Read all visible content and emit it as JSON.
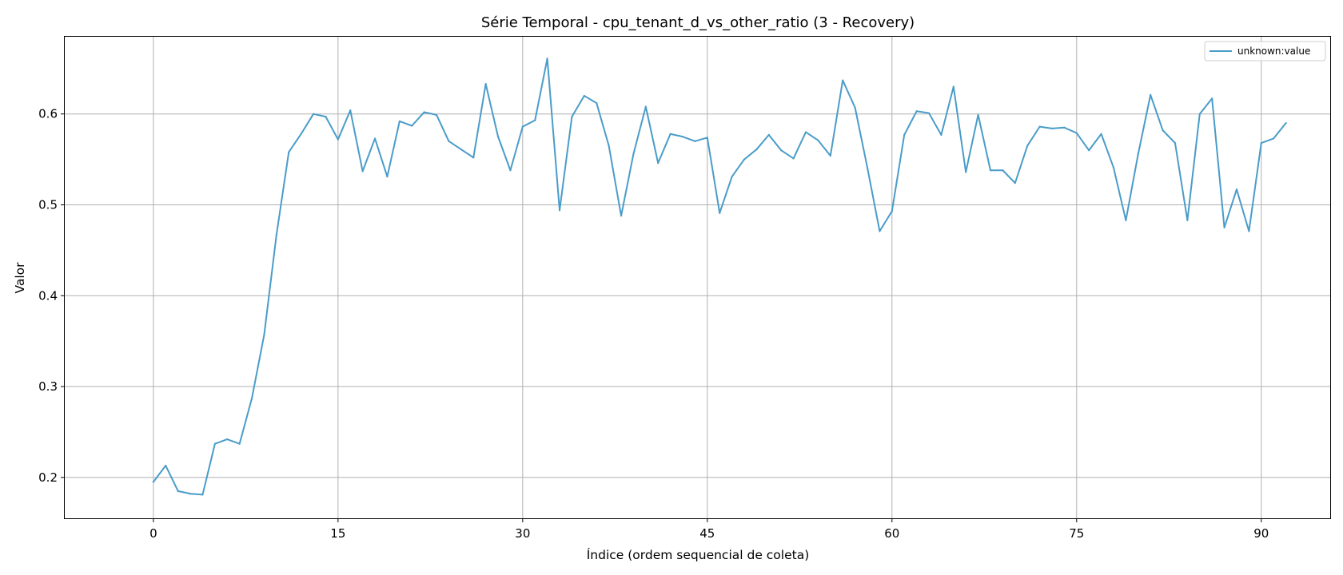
{
  "chart_data": {
    "type": "line",
    "title": "Série Temporal - cpu_tenant_d_vs_other_ratio (3 - Recovery)",
    "xlabel": "Índice (ordem sequencial de coleta)",
    "ylabel": "Valor",
    "xlim": [
      -7.2,
      95.6
    ],
    "ylim": [
      0.155,
      0.685
    ],
    "xticks": [
      0,
      15,
      30,
      45,
      60,
      75,
      90
    ],
    "yticks": [
      0.2,
      0.3,
      0.4,
      0.5,
      0.6
    ],
    "grid": true,
    "legend_position": "top-right",
    "colors": {
      "series": "#4a9cc9",
      "grid": "#b0b0b0"
    },
    "series": [
      {
        "name": "unknown:value",
        "x": [
          0,
          1,
          2,
          3,
          4,
          5,
          6,
          7,
          8,
          9,
          10,
          11,
          12,
          13,
          14,
          15,
          16,
          17,
          18,
          19,
          20,
          21,
          22,
          23,
          24,
          25,
          26,
          27,
          28,
          29,
          30,
          31,
          32,
          33,
          34,
          35,
          36,
          37,
          38,
          39,
          40,
          41,
          42,
          43,
          44,
          45,
          46,
          47,
          48,
          49,
          50,
          51,
          52,
          53,
          54,
          55,
          56,
          57,
          58,
          59,
          60,
          61,
          62,
          63,
          64,
          65,
          66,
          67,
          68,
          69,
          70,
          71,
          72,
          73,
          74,
          75,
          76,
          77,
          78,
          79,
          80,
          81,
          82,
          83,
          84,
          85,
          86,
          87,
          88,
          89,
          90,
          91,
          92
        ],
        "values": [
          0.195,
          0.213,
          0.185,
          0.182,
          0.181,
          0.237,
          0.242,
          0.237,
          0.287,
          0.357,
          0.467,
          0.558,
          0.578,
          0.6,
          0.597,
          0.572,
          0.604,
          0.537,
          0.573,
          0.531,
          0.592,
          0.587,
          0.602,
          0.599,
          0.57,
          0.561,
          0.552,
          0.633,
          0.575,
          0.538,
          0.586,
          0.593,
          0.661,
          0.494,
          0.597,
          0.62,
          0.612,
          0.565,
          0.488,
          0.556,
          0.608,
          0.546,
          0.578,
          0.575,
          0.57,
          0.574,
          0.491,
          0.531,
          0.55,
          0.561,
          0.577,
          0.56,
          0.551,
          0.58,
          0.571,
          0.554,
          0.637,
          0.607,
          0.541,
          0.471,
          0.493,
          0.577,
          0.603,
          0.601,
          0.577,
          0.63,
          0.536,
          0.599,
          0.538,
          0.538,
          0.524,
          0.565,
          0.586,
          0.584,
          0.585,
          0.579,
          0.56,
          0.578,
          0.541,
          0.483,
          0.556,
          0.621,
          0.582,
          0.568,
          0.483,
          0.6,
          0.617,
          0.475,
          0.517,
          0.471,
          0.568,
          0.573,
          0.59
        ]
      }
    ]
  }
}
